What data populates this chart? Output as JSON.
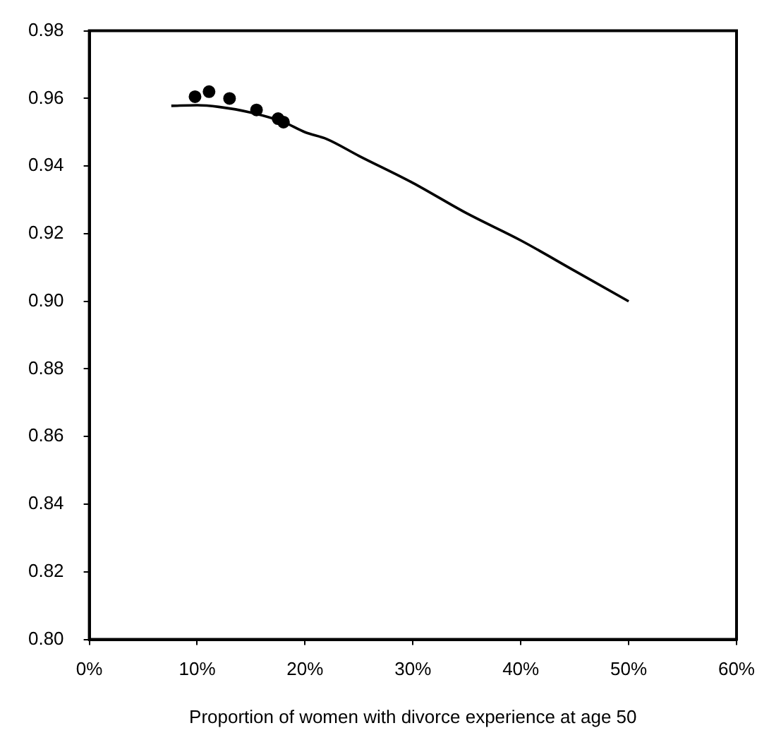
{
  "chart_data": {
    "type": "scatter",
    "xlabel": "Proportion of women with divorce experience at age 50",
    "xlim": [
      0,
      60
    ],
    "xticks": [
      {
        "value": 0,
        "label": "0%"
      },
      {
        "value": 10,
        "label": "10%"
      },
      {
        "value": 20,
        "label": "20%"
      },
      {
        "value": 30,
        "label": "30%"
      },
      {
        "value": 40,
        "label": "40%"
      },
      {
        "value": 50,
        "label": "50%"
      },
      {
        "value": 60,
        "label": "60%"
      }
    ],
    "ylim": [
      0.8,
      0.98
    ],
    "yticks": [
      {
        "value": 0.8,
        "label": "0.80"
      },
      {
        "value": 0.82,
        "label": "0.82"
      },
      {
        "value": 0.84,
        "label": "0.84"
      },
      {
        "value": 0.86,
        "label": "0.86"
      },
      {
        "value": 0.88,
        "label": "0.88"
      },
      {
        "value": 0.9,
        "label": "0.90"
      },
      {
        "value": 0.92,
        "label": "0.92"
      },
      {
        "value": 0.94,
        "label": "0.94"
      },
      {
        "value": 0.96,
        "label": "0.96"
      },
      {
        "value": 0.98,
        "label": "0.98"
      }
    ],
    "grid": false,
    "legend": false,
    "series": [
      {
        "color": "#000000",
        "marker": "circle",
        "x": [
          9.8,
          11.1,
          13.0,
          15.5,
          17.5,
          18.0
        ],
        "values": [
          0.9605,
          0.962,
          0.96,
          0.9566,
          0.954,
          0.953
        ]
      },
      {
        "type": "line",
        "color": "#000000",
        "marker": "none",
        "line_style": "solid",
        "x": [
          7.6,
          10,
          12,
          15,
          18,
          20,
          22,
          25,
          30,
          35,
          40,
          45,
          50
        ],
        "values": [
          0.9578,
          0.958,
          0.9575,
          0.9558,
          0.953,
          0.95,
          0.948,
          0.943,
          0.935,
          0.926,
          0.918,
          0.909,
          0.9
        ]
      }
    ]
  }
}
